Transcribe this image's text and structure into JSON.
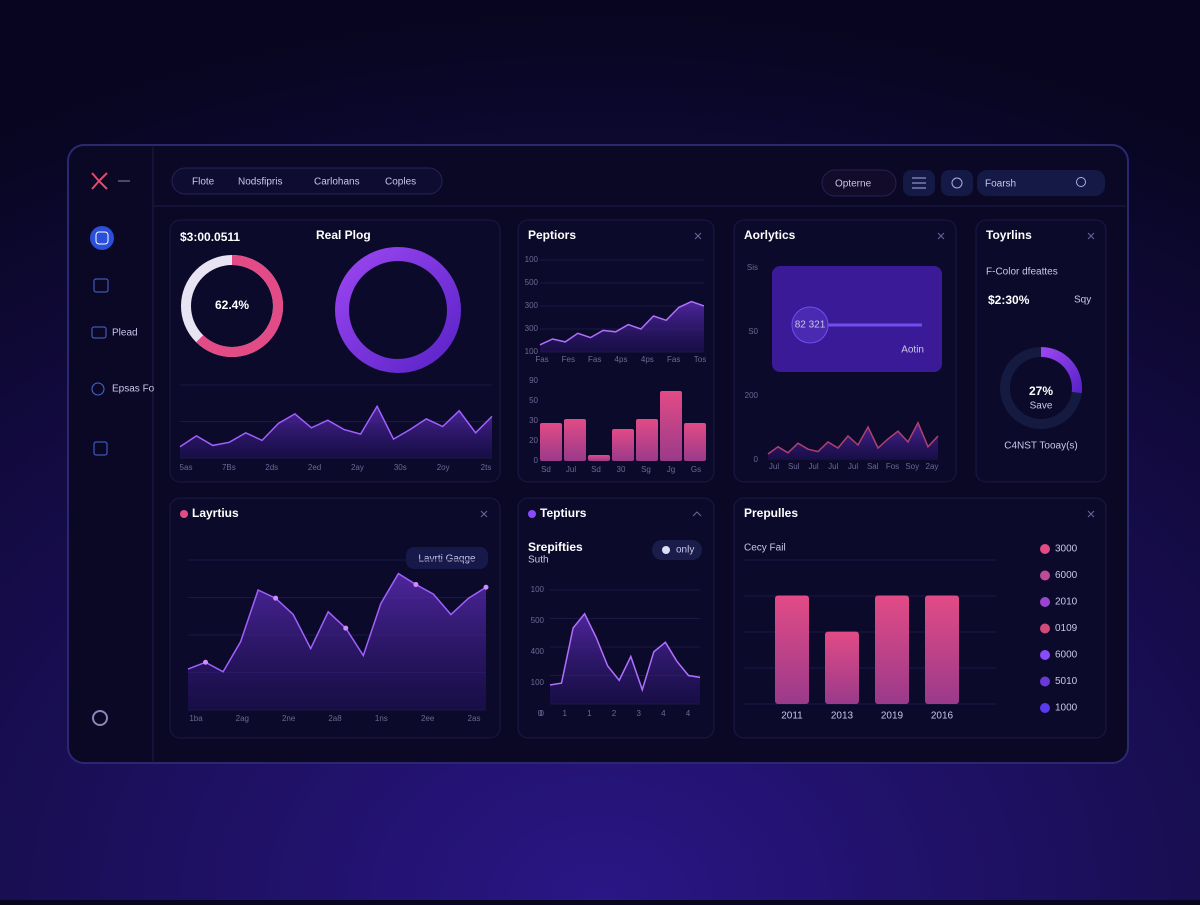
{
  "nav": {
    "items": [
      "Flote",
      "Nodsfipris",
      "Carlohans",
      "Coples"
    ],
    "button": "Opterne",
    "search": "Foarsh"
  },
  "sidebar": {
    "items": [
      "Plead",
      "Epsas Fo"
    ]
  },
  "summary": {
    "amount": "$3:00.0511",
    "label": "Real Plog",
    "donut": {
      "value": 62.4,
      "value_label": "62.4%",
      "ylim": [
        0,
        100
      ]
    },
    "area": {
      "values": [
        18,
        35,
        20,
        25,
        40,
        28,
        55,
        70,
        48,
        60,
        45,
        38,
        82,
        30,
        45,
        62,
        50,
        75,
        40,
        66
      ],
      "ylim": [
        0,
        100
      ],
      "x_labels": [
        "5as",
        "7Bs",
        "2ds",
        "2ed",
        "2ay",
        "30s",
        "2oy",
        "2ts"
      ]
    }
  },
  "peptiors": {
    "title": "Peptiors",
    "line": {
      "values": [
        10,
        18,
        14,
        26,
        20,
        30,
        28,
        38,
        32,
        50,
        44,
        62,
        70,
        64
      ],
      "ylim": [
        0,
        100
      ],
      "y_labels": [
        "100",
        "500",
        "300",
        "300",
        "100"
      ],
      "x_labels": [
        "Fas",
        "Fes",
        "Fas",
        "4ps",
        "4ps",
        "Fas",
        "Tos"
      ]
    },
    "bars": {
      "values": [
        38,
        42,
        6,
        32,
        42,
        70,
        38
      ],
      "ylim": [
        0,
        80
      ],
      "y_labels": [
        "90",
        "50",
        "30",
        "20",
        "0"
      ],
      "x_labels": [
        "Sd",
        "Jul",
        "Sd",
        "30",
        "Sg",
        "Jg",
        "Gs"
      ]
    }
  },
  "aorlytics": {
    "title": "Aorlytics",
    "slider_text": "82 321",
    "button": "Aotin",
    "area": {
      "values": [
        10,
        22,
        12,
        28,
        18,
        14,
        30,
        20,
        40,
        25,
        55,
        20,
        35,
        48,
        30,
        62,
        22,
        40
      ],
      "ylim": [
        0,
        100
      ],
      "y_labels": [
        "Sis",
        "S0",
        "200",
        "0"
      ],
      "x_labels": [
        "Jul",
        "Sul",
        "Jul",
        "Jul",
        "Jul",
        "Sal",
        "Fos",
        "Soy",
        "2ay"
      ]
    }
  },
  "toyrlins": {
    "title": "Toyrlins",
    "subtitle": "F-Color dfeattes",
    "amount": "$2:30%",
    "tag": "Sqy",
    "gauge": {
      "value": 27,
      "value_label": "27%",
      "ylim": [
        0,
        100
      ]
    },
    "gauge_caption": "Save",
    "footer": "C4NST Tooay(s)"
  },
  "layrtius": {
    "title": "Layrtius",
    "button": "Lavrti Gaqge",
    "area": {
      "values": [
        30,
        35,
        28,
        50,
        88,
        82,
        70,
        45,
        72,
        60,
        40,
        78,
        100,
        92,
        85,
        70,
        82,
        90
      ],
      "ylim": [
        0,
        110
      ],
      "x_labels": [
        "1ba",
        "2ag",
        "2ne",
        "2a8",
        "1ns",
        "2ee",
        "2as"
      ]
    }
  },
  "teptiurs": {
    "title": "Teptiurs",
    "subtitle": "Srepifties",
    "caption": "Suth",
    "toggle": "only",
    "area": {
      "values": [
        20,
        22,
        80,
        95,
        70,
        40,
        25,
        50,
        15,
        55,
        65,
        45,
        30,
        28
      ],
      "ylim": [
        0,
        120
      ],
      "y_labels": [
        "100",
        "500",
        "400",
        "100",
        "0"
      ],
      "x_labels": [
        "0",
        "1",
        "1",
        "2",
        "3",
        "4",
        "4"
      ]
    }
  },
  "prepulles": {
    "title": "Prepulles",
    "subtitle": "Cecy Fail",
    "bars": {
      "categories": [
        "2011",
        "2013",
        "2019",
        "2016"
      ],
      "values": [
        105,
        70,
        105,
        105
      ],
      "ylim": [
        0,
        120
      ]
    },
    "legend": [
      "3000",
      "6000",
      "2010",
      "0109",
      "6000",
      "5010",
      "1000"
    ]
  }
}
